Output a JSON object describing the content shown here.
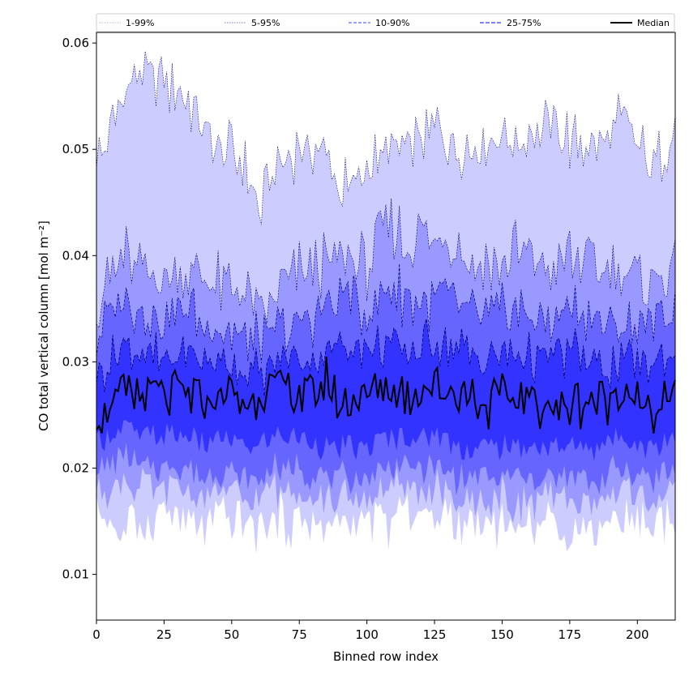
{
  "chart_data": {
    "type": "area",
    "xlabel": "Binned row index",
    "ylabel": "CO total vertical column [mol m⁻²]",
    "xlim": [
      0,
      214
    ],
    "ylim": [
      0.0057,
      0.061
    ],
    "xticks": [
      0,
      25,
      50,
      75,
      100,
      125,
      150,
      175,
      200
    ],
    "yticks": [
      0.01,
      0.02,
      0.03,
      0.04,
      0.05,
      0.06
    ],
    "ytick_labels": [
      "0.01",
      "0.02",
      "0.03",
      "0.04",
      "0.05",
      "0.06"
    ],
    "grid": false,
    "legend": {
      "placement": "top",
      "entries": [
        "1-99%",
        "5-95%",
        "10-90%",
        "25-75%",
        "Median"
      ]
    },
    "series": [
      {
        "name": "1-99%",
        "lower": 0.015,
        "upper": 0.05,
        "color": "#ccccff"
      },
      {
        "name": "5-95%",
        "lower": 0.0175,
        "upper": 0.039,
        "color": "#9999ff"
      },
      {
        "name": "10-90%",
        "lower": 0.0195,
        "upper": 0.034,
        "color": "#6666ff"
      },
      {
        "name": "25-75%",
        "lower": 0.0225,
        "upper": 0.0305,
        "color": "#3333ff"
      },
      {
        "name": "Median",
        "value": 0.0265,
        "color": "#000000"
      }
    ],
    "profile_points": {
      "x": [
        0,
        5,
        10,
        17,
        25,
        33,
        40,
        48,
        55,
        60,
        66,
        75,
        85,
        90,
        100,
        108,
        115,
        125,
        135,
        145,
        155,
        165,
        175,
        185,
        195,
        205,
        214
      ],
      "p99": [
        0.049,
        0.052,
        0.055,
        0.057,
        0.056,
        0.055,
        0.052,
        0.05,
        0.048,
        0.044,
        0.048,
        0.05,
        0.049,
        0.046,
        0.048,
        0.05,
        0.05,
        0.052,
        0.05,
        0.051,
        0.051,
        0.052,
        0.051,
        0.05,
        0.053,
        0.048,
        0.052
      ],
      "p95": [
        0.036,
        0.038,
        0.04,
        0.039,
        0.038,
        0.039,
        0.038,
        0.037,
        0.036,
        0.035,
        0.036,
        0.038,
        0.039,
        0.04,
        0.039,
        0.043,
        0.041,
        0.042,
        0.04,
        0.039,
        0.04,
        0.039,
        0.04,
        0.039,
        0.038,
        0.038,
        0.039
      ],
      "p90": [
        0.032,
        0.034,
        0.036,
        0.035,
        0.034,
        0.035,
        0.034,
        0.033,
        0.032,
        0.032,
        0.033,
        0.034,
        0.035,
        0.036,
        0.035,
        0.037,
        0.036,
        0.036,
        0.035,
        0.034,
        0.035,
        0.034,
        0.035,
        0.034,
        0.033,
        0.034,
        0.035
      ],
      "p75": [
        0.029,
        0.03,
        0.032,
        0.031,
        0.03,
        0.031,
        0.03,
        0.03,
        0.029,
        0.029,
        0.03,
        0.03,
        0.031,
        0.032,
        0.031,
        0.032,
        0.031,
        0.032,
        0.031,
        0.03,
        0.031,
        0.03,
        0.031,
        0.03,
        0.03,
        0.03,
        0.031
      ],
      "median": [
        0.025,
        0.026,
        0.027,
        0.027,
        0.027,
        0.027,
        0.026,
        0.027,
        0.026,
        0.027,
        0.028,
        0.027,
        0.028,
        0.026,
        0.027,
        0.028,
        0.027,
        0.028,
        0.027,
        0.026,
        0.027,
        0.026,
        0.026,
        0.026,
        0.027,
        0.025,
        0.027
      ],
      "p25": [
        0.023,
        0.023,
        0.024,
        0.023,
        0.023,
        0.023,
        0.022,
        0.023,
        0.022,
        0.022,
        0.023,
        0.023,
        0.022,
        0.022,
        0.022,
        0.023,
        0.023,
        0.023,
        0.022,
        0.022,
        0.022,
        0.022,
        0.022,
        0.022,
        0.023,
        0.022,
        0.023
      ],
      "p10": [
        0.02,
        0.02,
        0.021,
        0.02,
        0.02,
        0.02,
        0.019,
        0.02,
        0.019,
        0.019,
        0.02,
        0.02,
        0.019,
        0.019,
        0.019,
        0.02,
        0.02,
        0.02,
        0.019,
        0.019,
        0.019,
        0.019,
        0.019,
        0.019,
        0.02,
        0.019,
        0.02
      ],
      "p5": [
        0.018,
        0.018,
        0.019,
        0.018,
        0.018,
        0.018,
        0.017,
        0.018,
        0.017,
        0.017,
        0.018,
        0.018,
        0.017,
        0.017,
        0.017,
        0.018,
        0.018,
        0.018,
        0.017,
        0.017,
        0.017,
        0.017,
        0.017,
        0.017,
        0.018,
        0.017,
        0.018
      ],
      "p1": [
        0.016,
        0.015,
        0.014,
        0.015,
        0.016,
        0.015,
        0.014,
        0.015,
        0.015,
        0.014,
        0.015,
        0.015,
        0.014,
        0.015,
        0.015,
        0.015,
        0.016,
        0.016,
        0.015,
        0.015,
        0.015,
        0.015,
        0.014,
        0.015,
        0.015,
        0.015,
        0.016
      ]
    }
  }
}
